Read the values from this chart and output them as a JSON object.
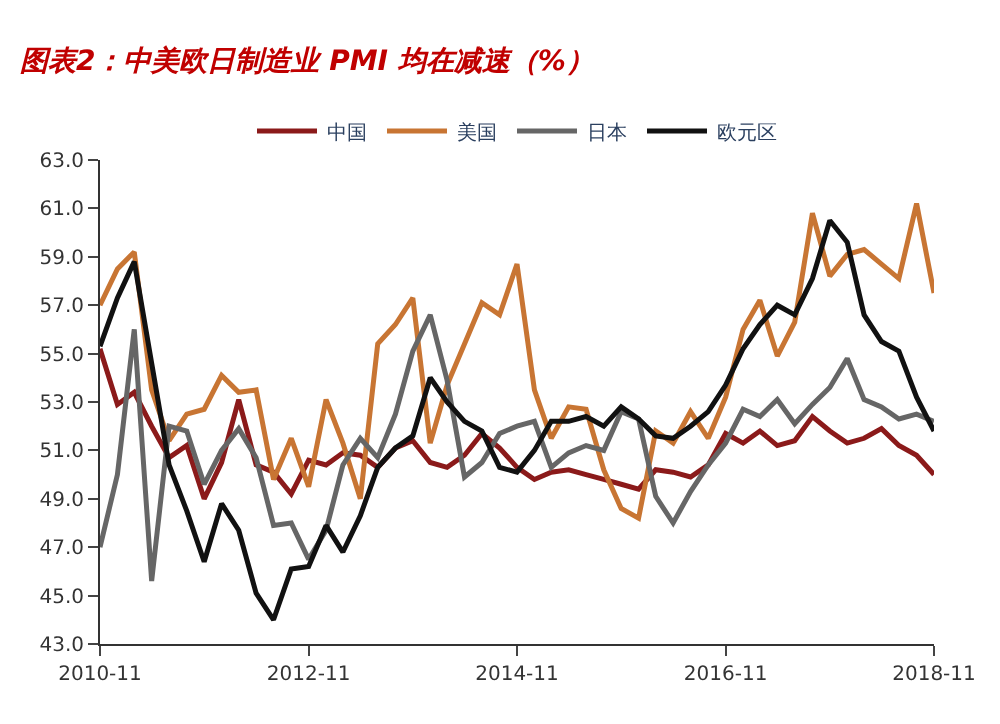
{
  "chart_data": {
    "type": "line",
    "title": "图表2：中美欧日制造业 PMI 均在减速（%）",
    "x": [
      "2010-11",
      "2011-01",
      "2011-03",
      "2011-05",
      "2011-07",
      "2011-09",
      "2011-11",
      "2012-01",
      "2012-03",
      "2012-05",
      "2012-07",
      "2012-09",
      "2012-11",
      "2013-01",
      "2013-03",
      "2013-05",
      "2013-07",
      "2013-09",
      "2013-11",
      "2014-01",
      "2014-03",
      "2014-05",
      "2014-07",
      "2014-09",
      "2014-11",
      "2015-01",
      "2015-03",
      "2015-05",
      "2015-07",
      "2015-09",
      "2015-11",
      "2016-01",
      "2016-03",
      "2016-05",
      "2016-07",
      "2016-09",
      "2016-11",
      "2017-01",
      "2017-03",
      "2017-05",
      "2017-07",
      "2017-09",
      "2017-11",
      "2018-01",
      "2018-03",
      "2018-05",
      "2018-07",
      "2018-09",
      "2018-11"
    ],
    "series": [
      {
        "name": "中国",
        "color": "#8b1a1a",
        "values": [
          55.2,
          52.9,
          53.4,
          52.0,
          50.7,
          51.2,
          49.0,
          50.5,
          53.1,
          50.4,
          50.1,
          49.2,
          50.6,
          50.4,
          50.9,
          50.8,
          50.3,
          51.1,
          51.4,
          50.5,
          50.3,
          50.8,
          51.7,
          51.1,
          50.3,
          49.8,
          50.1,
          50.2,
          50.0,
          49.8,
          49.6,
          49.4,
          50.2,
          50.1,
          49.9,
          50.4,
          51.7,
          51.3,
          51.8,
          51.2,
          51.4,
          52.4,
          51.8,
          51.3,
          51.5,
          51.9,
          51.2,
          50.8,
          50.0
        ]
      },
      {
        "name": "美国",
        "color": "#c87533",
        "values": [
          57.0,
          58.5,
          59.2,
          53.5,
          51.4,
          52.5,
          52.7,
          54.1,
          53.4,
          53.5,
          49.8,
          51.5,
          49.5,
          53.1,
          51.3,
          49.0,
          55.4,
          56.2,
          57.3,
          51.3,
          53.7,
          55.4,
          57.1,
          56.6,
          58.7,
          53.5,
          51.5,
          52.8,
          52.7,
          50.2,
          48.6,
          48.2,
          51.8,
          51.3,
          52.6,
          51.5,
          53.2,
          56.0,
          57.2,
          54.9,
          56.3,
          60.8,
          58.2,
          59.1,
          59.3,
          58.7,
          58.1,
          61.2,
          57.5
        ]
      },
      {
        "name": "日本",
        "color": "#666666",
        "values": [
          47.0,
          50.0,
          56.0,
          45.6,
          52.0,
          51.8,
          49.6,
          51.0,
          51.9,
          50.7,
          47.9,
          48.0,
          46.5,
          47.7,
          50.4,
          51.5,
          50.7,
          52.5,
          55.1,
          56.6,
          53.9,
          49.9,
          50.5,
          51.7,
          52.0,
          52.2,
          50.3,
          50.9,
          51.2,
          51.0,
          52.6,
          52.3,
          49.1,
          48.0,
          49.3,
          50.4,
          51.3,
          52.7,
          52.4,
          53.1,
          52.1,
          52.9,
          53.6,
          54.8,
          53.1,
          52.8,
          52.3,
          52.5,
          52.2
        ]
      },
      {
        "name": "欧元区",
        "color": "#111111",
        "values": [
          55.3,
          57.3,
          58.8,
          54.6,
          50.4,
          48.5,
          46.4,
          48.8,
          47.7,
          45.1,
          44.0,
          46.1,
          46.2,
          47.9,
          46.8,
          48.3,
          50.3,
          51.1,
          51.6,
          54.0,
          53.0,
          52.2,
          51.8,
          50.3,
          50.1,
          51.0,
          52.2,
          52.2,
          52.4,
          52.0,
          52.8,
          52.3,
          51.6,
          51.5,
          52.0,
          52.6,
          53.7,
          55.2,
          56.2,
          57.0,
          56.6,
          58.1,
          60.5,
          59.6,
          56.6,
          55.5,
          55.1,
          53.2,
          51.8
        ]
      }
    ],
    "xlim": [
      "2010-11",
      "2018-11"
    ],
    "xticks": [
      {
        "value": "2010-11",
        "label": "2010-11"
      },
      {
        "value": "2012-11",
        "label": "2012-11"
      },
      {
        "value": "2014-11",
        "label": "2014-11"
      },
      {
        "value": "2016-11",
        "label": "2016-11"
      },
      {
        "value": "2018-11",
        "label": "2018-11"
      }
    ],
    "ylim": [
      43,
      63
    ],
    "yticks": [
      {
        "value": 43,
        "label": "43.0"
      },
      {
        "value": 45,
        "label": "45.0"
      },
      {
        "value": 47,
        "label": "47.0"
      },
      {
        "value": 49,
        "label": "49.0"
      },
      {
        "value": 51,
        "label": "51.0"
      },
      {
        "value": 53,
        "label": "53.0"
      },
      {
        "value": 55,
        "label": "55.0"
      },
      {
        "value": 57,
        "label": "57.0"
      },
      {
        "value": 59,
        "label": "59.0"
      },
      {
        "value": 61,
        "label": "61.0"
      },
      {
        "value": 63,
        "label": "63.0"
      }
    ],
    "legend": "top",
    "marker": "none",
    "line_style": "solid"
  }
}
